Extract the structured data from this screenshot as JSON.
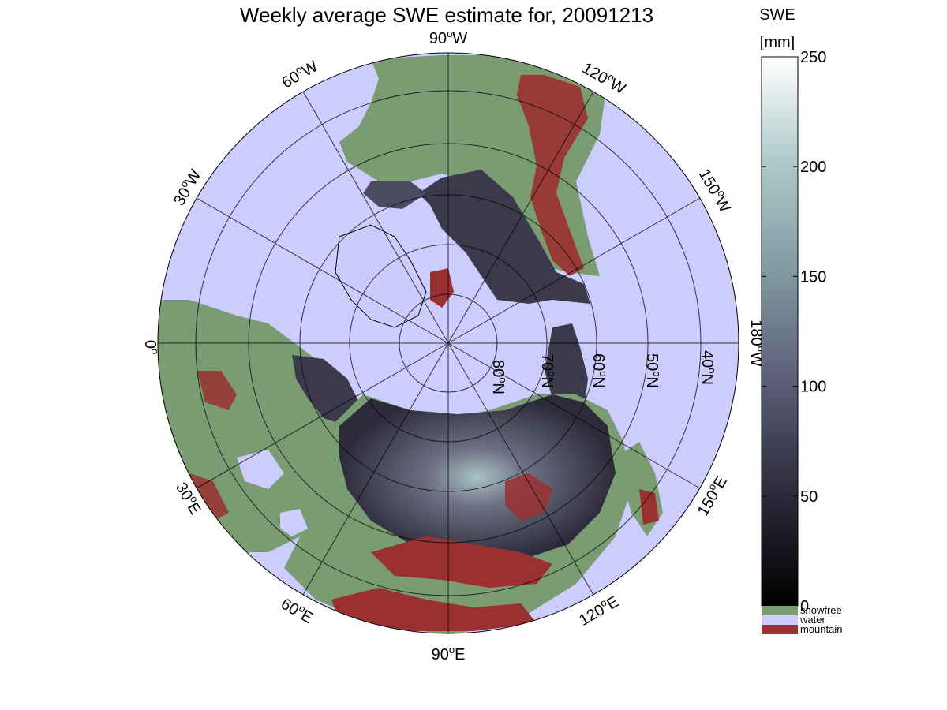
{
  "figure": {
    "title": "Weekly average SWE estimate for, 20091213",
    "colorbar": {
      "title_line1": "SWE",
      "title_line2": "[mm]",
      "ticks": [
        0,
        50,
        100,
        150,
        200,
        250
      ],
      "range": [
        0,
        250
      ],
      "colormap": "bone",
      "categories": [
        {
          "label": "snowfree",
          "color": "#7a9c72"
        },
        {
          "label": "water",
          "color": "#cccdfc"
        },
        {
          "label": "mountain",
          "color": "#9b3030"
        }
      ]
    },
    "map": {
      "projection": "north-polar-stereographic",
      "ocean_color": "#cccdfc",
      "land_color": "#7a9c72",
      "mountain_color": "#9b3030",
      "snow_color_low": "#1c1c26",
      "snow_color_high": "#a8c4c4",
      "longitude_labels": {
        "deg90W": {
          "deg": "90",
          "dir": "W"
        },
        "deg60W": {
          "deg": "60",
          "dir": "W"
        },
        "deg30W": {
          "deg": "30",
          "dir": "W"
        },
        "deg120W": {
          "deg": "120",
          "dir": "W"
        },
        "deg150W": {
          "deg": "150",
          "dir": "W"
        },
        "deg180W": {
          "deg": "180",
          "dir": "W"
        },
        "deg0": {
          "deg": "0",
          "dir": ""
        },
        "deg30E": {
          "deg": "30",
          "dir": "E"
        },
        "deg60E": {
          "deg": "60",
          "dir": "E"
        },
        "deg90E": {
          "deg": "90",
          "dir": "E"
        },
        "deg120E": {
          "deg": "120",
          "dir": "E"
        },
        "deg150E": {
          "deg": "150",
          "dir": "E"
        }
      },
      "latitude_labels": {
        "lat80": {
          "deg": "80",
          "dir": "N"
        },
        "lat70": {
          "deg": "70",
          "dir": "N"
        },
        "lat60": {
          "deg": "60",
          "dir": "N"
        },
        "lat50": {
          "deg": "50",
          "dir": "N"
        },
        "lat40": {
          "deg": "40",
          "dir": "N"
        }
      }
    }
  }
}
